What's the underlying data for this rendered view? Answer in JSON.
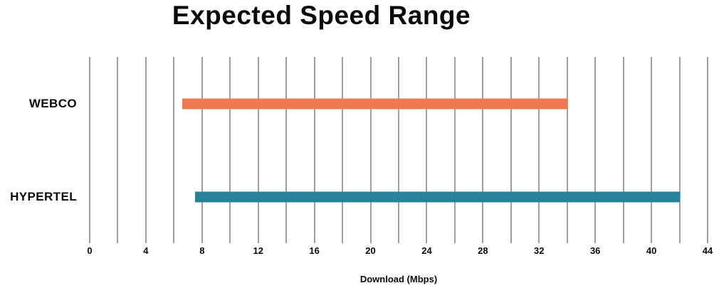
{
  "chart_data": {
    "type": "bar",
    "subtype": "horizontal_range_bars",
    "title": "Expected Speed Range",
    "xlabel": "Download (Mbps)",
    "categories": [
      "WEBCO",
      "HYPERTEL"
    ],
    "series": [
      {
        "name": "WEBCO",
        "range_min": 6.6,
        "range_max": 34,
        "color": "#EF7A52"
      },
      {
        "name": "HYPERTEL",
        "range_min": 7.5,
        "range_max": 42,
        "color": "#28839A"
      }
    ],
    "xlim": [
      0,
      44
    ],
    "x_tick_labels": [
      "0",
      "4",
      "8",
      "12",
      "16",
      "20",
      "24",
      "28",
      "32",
      "36",
      "40",
      "44"
    ],
    "x_tick_values": [
      0,
      4,
      8,
      12,
      16,
      20,
      24,
      28,
      32,
      36,
      40,
      44
    ],
    "grid": true,
    "grid_interval": 2,
    "gridline_color": "#A49F9A",
    "text_color": "#0A0A0A",
    "legend_position": "none"
  }
}
